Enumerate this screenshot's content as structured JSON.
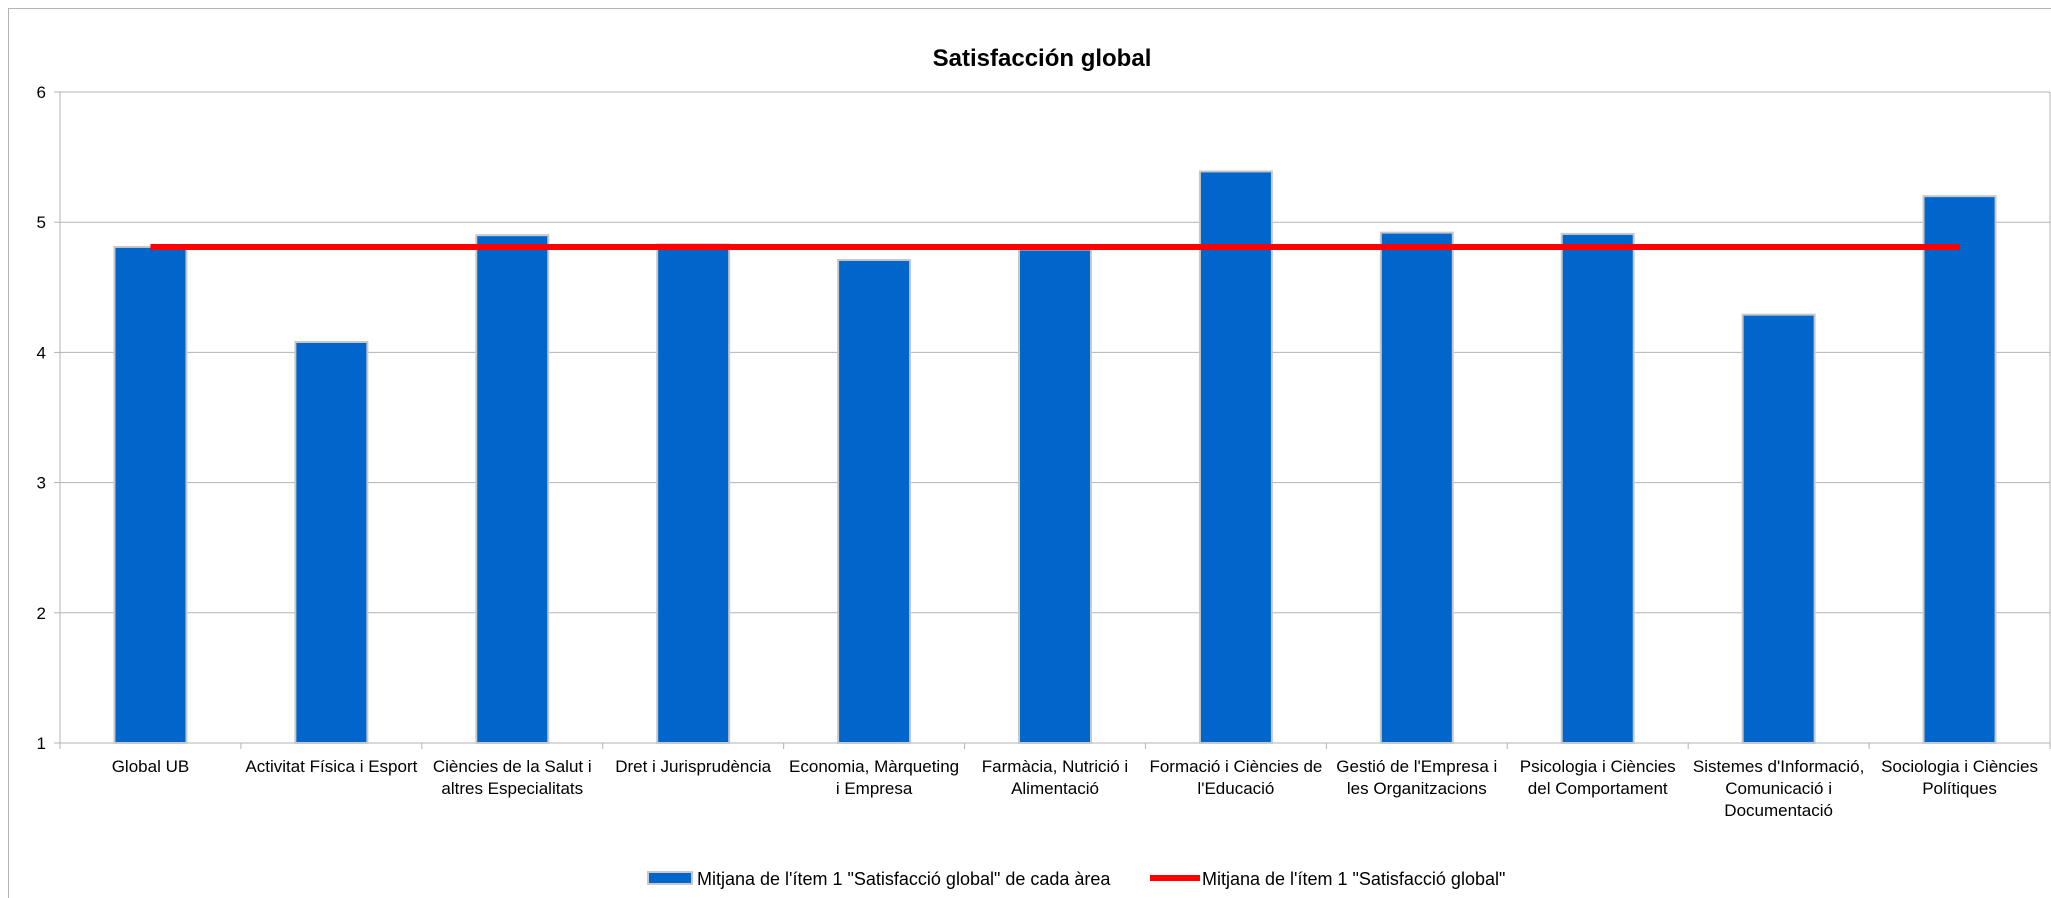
{
  "chart_data": {
    "type": "bar",
    "title": "Satisfacción global",
    "xlabel": "",
    "ylabel": "",
    "ylim": [
      1,
      6
    ],
    "yticks": [
      1,
      2,
      3,
      4,
      5,
      6
    ],
    "grid": "horizontal",
    "legend_position": "bottom",
    "categories": [
      [
        "Global UB"
      ],
      [
        "Activitat Física i Esport"
      ],
      [
        "Ciències de la Salut i",
        "altres Especialitats"
      ],
      [
        "Dret i Jurisprudència"
      ],
      [
        "Economia, Màrqueting",
        "i Empresa"
      ],
      [
        "Farmàcia, Nutrició i",
        "Alimentació"
      ],
      [
        "Formació i Ciències de",
        "l'Educació"
      ],
      [
        "Gestió de l'Empresa i",
        "les Organitzacions"
      ],
      [
        "Psicologia i Ciències",
        "del Comportament"
      ],
      [
        "Sistemes d'Informació,",
        "Comunicació i",
        "Documentació"
      ],
      [
        "Sociologia i Ciències",
        "Polítiques"
      ]
    ],
    "series": [
      {
        "name": "Mitjana de l'ítem 1 \"Satisfacció global\" de cada àrea",
        "type": "bar",
        "color": "#0066cc",
        "values": [
          4.81,
          4.08,
          4.9,
          4.83,
          4.71,
          4.79,
          5.39,
          4.92,
          4.91,
          4.29,
          5.2
        ]
      },
      {
        "name": "Mitjana de l'ítem 1 \"Satisfacció global\"",
        "type": "line",
        "color": "#ff0000",
        "values": [
          4.81,
          4.81,
          4.81,
          4.81,
          4.81,
          4.81,
          4.81,
          4.81,
          4.81,
          4.81,
          4.81
        ]
      }
    ]
  }
}
